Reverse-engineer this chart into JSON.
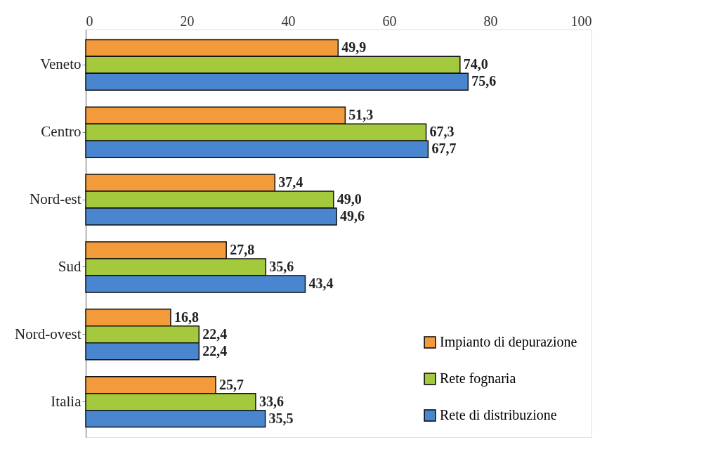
{
  "chart_data": {
    "type": "bar",
    "orientation": "horizontal",
    "categories": [
      "Veneto",
      "Centro",
      "Nord-est",
      "Sud",
      "Nord-ovest",
      "Italia"
    ],
    "series": [
      {
        "name": "Impianto di depurazione",
        "color": "#f39a3a",
        "values": [
          49.9,
          51.3,
          37.4,
          27.8,
          16.8,
          25.7
        ],
        "value_labels": [
          "49,9",
          "51,3",
          "37,4",
          "27,8",
          "16,8",
          "25,7"
        ]
      },
      {
        "name": "Rete fognaria",
        "color": "#a4c93c",
        "values": [
          74.0,
          67.3,
          49.0,
          35.6,
          22.4,
          33.6
        ],
        "value_labels": [
          "74,0",
          "67,3",
          "49,0",
          "35,6",
          "22,4",
          "33,6"
        ]
      },
      {
        "name": "Rete di distribuzione",
        "color": "#4a85cf",
        "values": [
          75.6,
          67.7,
          49.6,
          43.4,
          22.4,
          35.5
        ],
        "value_labels": [
          "75,6",
          "67,7",
          "49,6",
          "43,4",
          "22,4",
          "35,5"
        ]
      }
    ],
    "xlim": [
      0,
      100
    ],
    "xticks": [
      0,
      20,
      40,
      60,
      80,
      100
    ],
    "grid": false,
    "legend": "bottom right"
  }
}
